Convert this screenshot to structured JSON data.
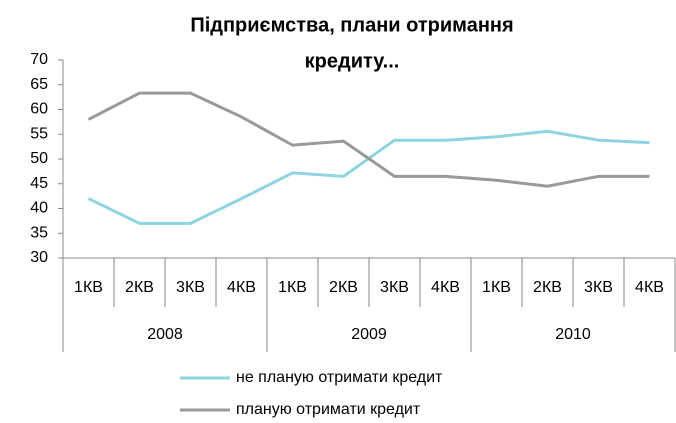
{
  "chart_data": {
    "type": "line",
    "title": [
      "Підприємства, плани отримання",
      "кредиту..."
    ],
    "categories": [
      "1КВ",
      "2КВ",
      "3КВ",
      "4КВ",
      "1КВ",
      "2КВ",
      "3КВ",
      "4КВ",
      "1КВ",
      "2КВ",
      "3КВ",
      "4КВ"
    ],
    "category_groups": [
      "2008",
      "2009",
      "2010"
    ],
    "series": [
      {
        "name": "не планую отримати кредит",
        "color": "#8fd3e1",
        "values": [
          42,
          37,
          37,
          42,
          47.2,
          46.5,
          53.8,
          53.8,
          54.5,
          55.6,
          53.8,
          53.3
        ]
      },
      {
        "name": "планую отримати кредит",
        "color": "#999999",
        "values": [
          58,
          63.3,
          63.3,
          58.5,
          52.8,
          53.6,
          46.5,
          46.5,
          45.7,
          44.5,
          46.5,
          46.5
        ]
      }
    ],
    "ylim": [
      30,
      70
    ],
    "yticks": [
      30,
      35,
      40,
      45,
      50,
      55,
      60,
      65,
      70
    ],
    "grid": false
  }
}
